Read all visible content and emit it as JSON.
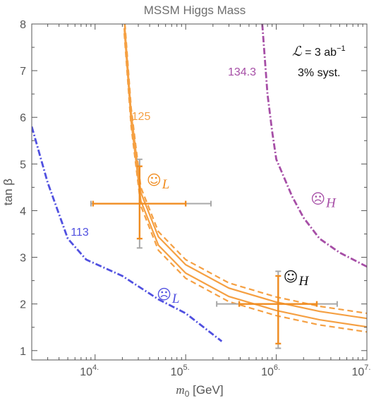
{
  "chart_data": {
    "type": "line",
    "title": "MSSM Higgs Mass",
    "xlabel": {
      "main": "m",
      "sub": "0",
      "unit": " [GeV]"
    },
    "ylabel": "tan β",
    "xscale": "log",
    "xlim": [
      2000,
      10000000
    ],
    "ylim": [
      0.8,
      8
    ],
    "x_ticks": [
      {
        "value": 10000,
        "base": "10",
        "exp": "4."
      },
      {
        "value": 100000,
        "base": "10",
        "exp": "5."
      },
      {
        "value": 1000000,
        "base": "10",
        "exp": "6."
      },
      {
        "value": 10000000,
        "base": "10",
        "exp": "7."
      }
    ],
    "y_ticks": [
      "1",
      "2",
      "3",
      "4",
      "5",
      "6",
      "7",
      "8"
    ],
    "grid": false,
    "annotations": {
      "lumi_symbol": "ℒ",
      "lumi_value": " = 3 ab",
      "lumi_exp": "−1",
      "syst": "3% syst."
    },
    "series": [
      {
        "label": "125",
        "color": "#f5a043",
        "style": "solid-band",
        "points": [
          [
            21000,
            8.0
          ],
          [
            25000,
            6.0
          ],
          [
            32000,
            4.3
          ],
          [
            50000,
            3.35
          ],
          [
            100000,
            2.75
          ],
          [
            300000,
            2.25
          ],
          [
            1000000,
            1.95
          ],
          [
            3000000,
            1.75
          ],
          [
            10000000,
            1.6
          ]
        ],
        "inner_offsets": [
          -0.09,
          0.09
        ],
        "dashed_offsets": [
          -0.2,
          0.2
        ]
      },
      {
        "label": "134.3",
        "color": "#a64ea6",
        "style": "dash-dot",
        "points": [
          [
            700000,
            8.0
          ],
          [
            800000,
            6.5
          ],
          [
            900000,
            5.7
          ],
          [
            1000000,
            5.1
          ],
          [
            1500000,
            4.3
          ],
          [
            2000000,
            3.85
          ],
          [
            3000000,
            3.4
          ],
          [
            5000000,
            3.1
          ],
          [
            10000000,
            2.8
          ]
        ]
      },
      {
        "label": "113",
        "color": "#5050e0",
        "style": "dash-dot",
        "points": [
          [
            2000,
            5.8
          ],
          [
            3000,
            4.6
          ],
          [
            5000,
            3.4
          ],
          [
            8000,
            2.95
          ],
          [
            20000,
            2.6
          ],
          [
            50000,
            2.1
          ],
          [
            100000,
            1.8
          ],
          [
            250000,
            1.2
          ]
        ]
      }
    ],
    "benchmarks": [
      {
        "face": "☺",
        "sub": "L",
        "color": "#f08c20",
        "x": 32000,
        "y": 4.3,
        "label_x": 31000,
        "label_y": 4.55
      },
      {
        "face": "☹",
        "sub": "H",
        "color": "#a64ea6",
        "x": null,
        "y": null,
        "label_x": 2000000,
        "label_y": 4.15
      },
      {
        "face": "☹",
        "sub": "L",
        "color": "#5050e0",
        "x": null,
        "y": null,
        "label_x": 40000,
        "label_y": 2.1
      },
      {
        "face": "☺",
        "sub": "H",
        "color": "#111111",
        "x": 1000000,
        "y": 2.0,
        "label_x": 1000000,
        "label_y": 2.48
      }
    ],
    "error_bars": [
      {
        "x": 31000,
        "y": 4.15,
        "x_inner": [
          9500,
          100000
        ],
        "x_outer": [
          9000,
          190000
        ],
        "y_inner": [
          3.4,
          4.95
        ],
        "y_outer": [
          3.2,
          5.1
        ]
      },
      {
        "x": 1050000,
        "y": 2.0,
        "x_inner": [
          390000,
          2800000
        ],
        "x_outer": [
          220000,
          4700000
        ],
        "y_inner": [
          1.15,
          2.6
        ],
        "y_outer": [
          1.05,
          2.7
        ]
      }
    ],
    "error_bar_colors": {
      "inner": "#f08c20",
      "outer": "#a8a8a8"
    }
  }
}
